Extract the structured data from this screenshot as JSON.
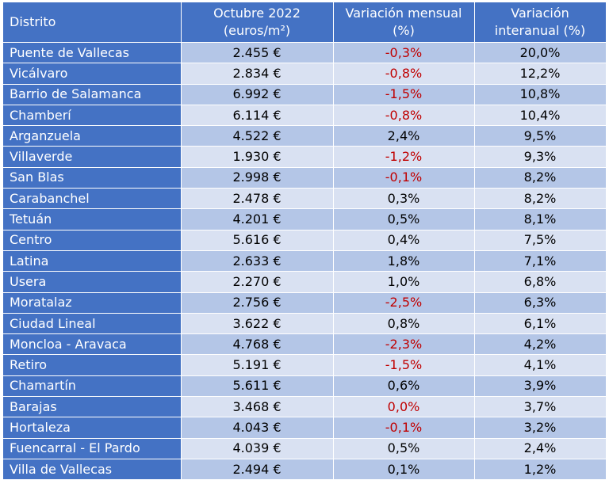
{
  "table": {
    "headers": {
      "col1": "Distrito",
      "col2_line1": "Octubre 2022",
      "col2_line2": "(euros/m²)",
      "col3_line1": "Variación mensual",
      "col3_line2": "(%)",
      "col4_line1": "Variación",
      "col4_line2": "interanual (%)"
    },
    "rows": [
      {
        "district": "Puente de Vallecas",
        "price": "2.455 €",
        "monthly": "-0,3%",
        "annual": "20,0%",
        "monthly_negative": true
      },
      {
        "district": "Vicálvaro",
        "price": "2.834 €",
        "monthly": "-0,8%",
        "annual": "12,2%",
        "monthly_negative": true
      },
      {
        "district": "Barrio de Salamanca",
        "price": "6.992 €",
        "monthly": "-1,5%",
        "annual": "10,8%",
        "monthly_negative": true
      },
      {
        "district": "Chamberí",
        "price": "6.114 €",
        "monthly": "-0,8%",
        "annual": "10,4%",
        "monthly_negative": true
      },
      {
        "district": "Arganzuela",
        "price": "4.522 €",
        "monthly": "2,4%",
        "annual": "9,5%",
        "monthly_negative": false
      },
      {
        "district": "Villaverde",
        "price": "1.930 €",
        "monthly": "-1,2%",
        "annual": "9,3%",
        "monthly_negative": true
      },
      {
        "district": "San Blas",
        "price": "2.998 €",
        "monthly": "-0,1%",
        "annual": "8,2%",
        "monthly_negative": true
      },
      {
        "district": "Carabanchel",
        "price": "2.478 €",
        "monthly": "0,3%",
        "annual": "8,2%",
        "monthly_negative": false
      },
      {
        "district": "Tetuán",
        "price": "4.201 €",
        "monthly": "0,5%",
        "annual": "8,1%",
        "monthly_negative": false
      },
      {
        "district": "Centro",
        "price": "5.616 €",
        "monthly": "0,4%",
        "annual": "7,5%",
        "monthly_negative": false
      },
      {
        "district": "Latina",
        "price": "2.633 €",
        "monthly": "1,8%",
        "annual": "7,1%",
        "monthly_negative": false
      },
      {
        "district": "Usera",
        "price": "2.270 €",
        "monthly": "1,0%",
        "annual": "6,8%",
        "monthly_negative": false
      },
      {
        "district": "Moratalaz",
        "price": "2.756 €",
        "monthly": "-2,5%",
        "annual": "6,3%",
        "monthly_negative": true
      },
      {
        "district": "Ciudad Lineal",
        "price": "3.622 €",
        "monthly": "0,8%",
        "annual": "6,1%",
        "monthly_negative": false
      },
      {
        "district": "Moncloa - Aravaca",
        "price": "4.768 €",
        "monthly": "-2,3%",
        "annual": "4,2%",
        "monthly_negative": true
      },
      {
        "district": "Retiro",
        "price": "5.191 €",
        "monthly": "-1,5%",
        "annual": "4,1%",
        "monthly_negative": true
      },
      {
        "district": "Chamartín",
        "price": "5.611 €",
        "monthly": "0,6%",
        "annual": "3,9%",
        "monthly_negative": false
      },
      {
        "district": "Barajas",
        "price": "3.468 €",
        "monthly": "0,0%",
        "annual": "3,7%",
        "monthly_negative": true
      },
      {
        "district": "Hortaleza",
        "price": "4.043 €",
        "monthly": "-0,1%",
        "annual": "3,2%",
        "monthly_negative": true
      },
      {
        "district": "Fuencarral - El Pardo",
        "price": "4.039 €",
        "monthly": "0,5%",
        "annual": "2,4%",
        "monthly_negative": false
      },
      {
        "district": "Villa de Vallecas",
        "price": "2.494 €",
        "monthly": "0,1%",
        "annual": "1,2%",
        "monthly_negative": false
      }
    ],
    "colors": {
      "header_bg": "#4472c4",
      "row_odd_bg": "#b4c6e7",
      "row_even_bg": "#d9e1f2",
      "negative_text": "#c00000"
    }
  }
}
